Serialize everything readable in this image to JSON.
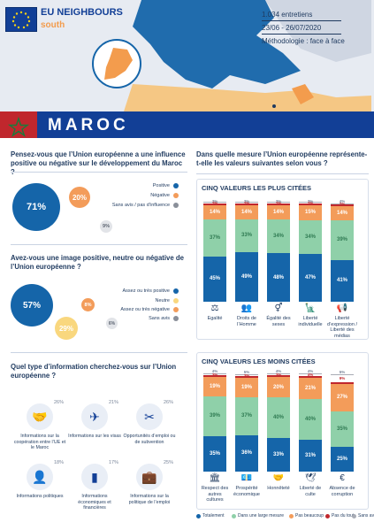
{
  "header": {
    "brand_line1": "EU NEIGHBOURS",
    "brand_line2": "south",
    "meta": [
      "1.034 entretiens",
      "23/06 - 26/07/2020",
      "Méthodologie : face à face"
    ]
  },
  "country": "MAROC",
  "q1": {
    "question": "Pensez-vous que l’Union européenne a une influence positive ou négative sur le développement du Maroc ?",
    "values": [
      {
        "label": "Positive",
        "value": "71%",
        "color": "#1565a9"
      },
      {
        "label": "Négative",
        "value": "20%",
        "color": "#f39c5a"
      },
      {
        "label": "Sans avis / pas d’influence",
        "value": "9%",
        "color": "#8a8f99"
      }
    ]
  },
  "q2": {
    "question": "Avez-vous une image positive, neutre ou négative de l’Union européenne ?",
    "values": [
      {
        "label": "Assez ou très positive",
        "value": "57%",
        "color": "#1565a9"
      },
      {
        "label": "Neutre",
        "value": "29%",
        "color": "#f9d77e"
      },
      {
        "label": "Assez ou très négative",
        "value": "8%",
        "color": "#f39c5a"
      },
      {
        "label": "Sans avis",
        "value": "6%",
        "color": "#8a8f99"
      }
    ]
  },
  "q3": {
    "question": "Quel type d’information cherchez-vous sur l’Union européenne ?",
    "items": [
      {
        "label": "Informations sur la coopération entre l’UE et le Maroc",
        "value": "26%",
        "icon": "handshake-icon",
        "glyph": "🤝"
      },
      {
        "label": "Informations sur les visas",
        "value": "21%",
        "icon": "airplane-icon",
        "glyph": "✈"
      },
      {
        "label": "Opportunités d’emploi ou de subvention",
        "value": "26%",
        "icon": "tools-icon",
        "glyph": "✂"
      },
      {
        "label": "Informations politiques",
        "value": "18%",
        "icon": "politician-icon",
        "glyph": "👤"
      },
      {
        "label": "Informations économiques et financières",
        "value": "17%",
        "icon": "economy-chart-icon",
        "glyph": "▮"
      },
      {
        "label": "Informations sur la politique de l’emploi",
        "value": "25%",
        "icon": "employment-icon",
        "glyph": "💼"
      }
    ]
  },
  "q4": {
    "question": "Dans quelle mesure l’Union européenne représente-t-elle les valeurs suivantes selon vous ?",
    "top_title": "CINQ VALEURS LES PLUS CITÉES",
    "bottom_title": "CINQ VALEURS LES MOINS CITÉES",
    "legend": [
      {
        "label": "Totalement",
        "color": "#1565a9"
      },
      {
        "label": "Dans une large mesure",
        "color": "#8fd0a9"
      },
      {
        "label": "Pas beaucoup",
        "color": "#f39c5a"
      },
      {
        "label": "Pas du tout",
        "color": "#c0272d"
      },
      {
        "label": "Sans avis",
        "color": "#a8acb5"
      }
    ]
  },
  "chart_data": [
    {
      "type": "bar",
      "title": "CINQ VALEURS LES PLUS CITÉES",
      "categories": [
        "Egalité",
        "Droits de l’Homme",
        "Égalité des sexes",
        "Liberté individuelle",
        "Liberté d’expression / Liberté des médias"
      ],
      "series": [
        {
          "name": "Totalement",
          "values": [
            45,
            49,
            48,
            47,
            41
          ]
        },
        {
          "name": "Dans une large mesure",
          "values": [
            37,
            33,
            34,
            34,
            39
          ]
        },
        {
          "name": "Pas beaucoup",
          "values": [
            14,
            14,
            14,
            15,
            14
          ]
        },
        {
          "name": "Pas du tout",
          "values": [
            2,
            2,
            2,
            2,
            2
          ]
        },
        {
          "name": "Sans avis",
          "values": [
            3,
            3,
            3,
            3,
            4
          ]
        }
      ]
    },
    {
      "type": "bar",
      "title": "CINQ VALEURS LES MOINS CITÉES",
      "categories": [
        "Respect des autres cultures",
        "Prospérité économique",
        "Honnêteté",
        "Liberté de culte",
        "Absence de corruption"
      ],
      "series": [
        {
          "name": "Totalement",
          "values": [
            35,
            36,
            33,
            31,
            25
          ]
        },
        {
          "name": "Dans une large mesure",
          "values": [
            39,
            37,
            40,
            40,
            35
          ]
        },
        {
          "name": "Pas beaucoup",
          "values": [
            19,
            19,
            20,
            21,
            27
          ]
        },
        {
          "name": "Pas du tout",
          "values": [
            3,
            3,
            3,
            4,
            9
          ]
        },
        {
          "name": "Sans avis",
          "values": [
            4,
            5,
            4,
            4,
            5
          ]
        }
      ]
    }
  ],
  "bar_icons_top": [
    "⚖",
    "👥",
    "⚥",
    "🗽",
    "📢"
  ],
  "bar_icons_bottom": [
    "🏛",
    "💶",
    "🤝",
    "🕊",
    "€"
  ]
}
